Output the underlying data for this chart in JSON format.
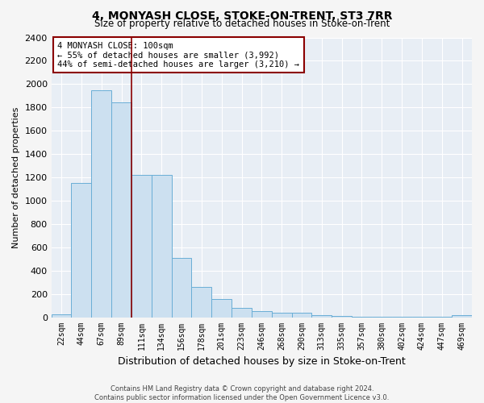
{
  "title": "4, MONYASH CLOSE, STOKE-ON-TRENT, ST3 7RR",
  "subtitle": "Size of property relative to detached houses in Stoke-on-Trent",
  "xlabel": "Distribution of detached houses by size in Stoke-on-Trent",
  "ylabel": "Number of detached properties",
  "footer_line1": "Contains HM Land Registry data © Crown copyright and database right 2024.",
  "footer_line2": "Contains public sector information licensed under the Open Government Licence v3.0.",
  "bar_labels": [
    "22sqm",
    "44sqm",
    "67sqm",
    "89sqm",
    "111sqm",
    "134sqm",
    "156sqm",
    "178sqm",
    "201sqm",
    "223sqm",
    "246sqm",
    "268sqm",
    "290sqm",
    "313sqm",
    "335sqm",
    "357sqm",
    "380sqm",
    "402sqm",
    "424sqm",
    "447sqm",
    "469sqm"
  ],
  "bar_values": [
    25,
    1155,
    1950,
    1840,
    1220,
    1220,
    510,
    260,
    155,
    80,
    50,
    35,
    35,
    15,
    8,
    5,
    4,
    3,
    3,
    2,
    15
  ],
  "bar_color": "#cce0f0",
  "bar_edge_color": "#6aaed6",
  "ylim": [
    0,
    2400
  ],
  "yticks": [
    0,
    200,
    400,
    600,
    800,
    1000,
    1200,
    1400,
    1600,
    1800,
    2000,
    2200,
    2400
  ],
  "vline_color": "#8b0000",
  "annotation_text": "4 MONYASH CLOSE: 100sqm\n← 55% of detached houses are smaller (3,992)\n44% of semi-detached houses are larger (3,210) →",
  "annotation_box_color": "#ffffff",
  "annotation_border_color": "#8b0000",
  "background_color": "#e8eef5",
  "grid_color": "#ffffff",
  "fig_background": "#f5f5f5"
}
